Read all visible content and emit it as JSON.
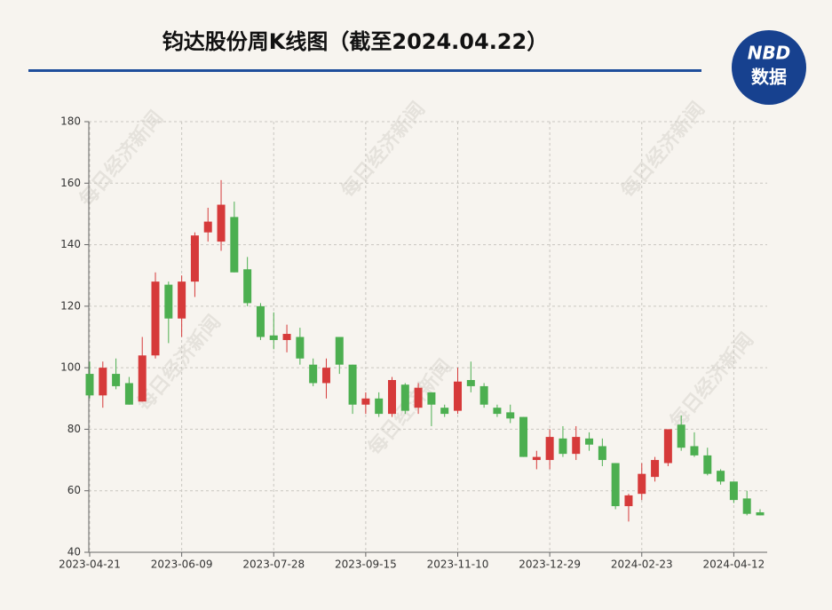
{
  "chart_data": {
    "type": "candlestick",
    "title": "钧达股份周K线图（截至2024.04.22）",
    "logo_top": "NBD",
    "logo_bottom": "数据",
    "watermark": "每日经济新闻",
    "categories": [
      "2023-04-21",
      null,
      null,
      null,
      null,
      null,
      null,
      "2023-06-09",
      null,
      null,
      null,
      null,
      null,
      null,
      "2023-07-28",
      null,
      null,
      null,
      null,
      null,
      null,
      "2023-09-15",
      null,
      null,
      null,
      null,
      null,
      null,
      "2023-11-10",
      null,
      null,
      null,
      null,
      null,
      null,
      "2023-12-29",
      null,
      null,
      null,
      null,
      null,
      null,
      "2024-02-23",
      null,
      null,
      null,
      null,
      null,
      null,
      "2024-04-12",
      null,
      null
    ],
    "open": [
      98,
      91,
      98,
      95,
      89,
      104,
      127,
      116,
      128,
      144,
      141,
      149,
      132,
      120,
      110.5,
      109,
      110,
      101,
      95,
      110,
      101,
      88,
      90,
      85,
      94.5,
      87,
      92,
      87,
      86,
      96,
      94,
      87,
      85.5,
      84,
      70,
      70,
      77,
      72,
      77,
      74.5,
      69,
      55,
      59,
      64.5,
      69,
      81.5,
      74.5,
      71.5,
      66.5,
      63,
      57.5,
      53
    ],
    "high": [
      102,
      102,
      103,
      97,
      110,
      131,
      128,
      130,
      144,
      152,
      161,
      154,
      136,
      121,
      118,
      114,
      113,
      103,
      103,
      110,
      101,
      92,
      92,
      97,
      95,
      95,
      92,
      88,
      100,
      102,
      95,
      88,
      88,
      84,
      73,
      80,
      81,
      81,
      79,
      77,
      69,
      59,
      69,
      71,
      80,
      84.5,
      79,
      74,
      67,
      63,
      60,
      54
    ],
    "low": [
      90,
      87,
      93,
      88,
      89,
      103,
      108,
      110,
      123,
      141,
      138,
      131,
      120,
      109,
      106,
      105,
      101,
      94,
      90,
      98,
      85,
      85,
      84,
      84,
      85,
      85,
      81,
      84,
      85,
      92,
      87,
      84,
      82,
      71,
      67,
      67,
      71,
      70,
      73,
      68,
      54,
      50,
      57,
      63,
      68,
      73,
      71,
      65,
      62,
      56,
      52,
      52
    ],
    "close": [
      91,
      100,
      94,
      88,
      104,
      128,
      116,
      128,
      143,
      147.5,
      153,
      131,
      121,
      110,
      109,
      111,
      103,
      95,
      100,
      101,
      88,
      90,
      85,
      96,
      86,
      93.5,
      88,
      85,
      95.5,
      94,
      88,
      85,
      83.5,
      71,
      71,
      77.5,
      72,
      77.5,
      75,
      70,
      55,
      58.5,
      65.5,
      70,
      80,
      74,
      71.5,
      65.5,
      63,
      57,
      52.5,
      52
    ],
    "up_color": "#d63a3a",
    "down_color": "#4caf50",
    "ylim": [
      40,
      180
    ],
    "yticks": [
      40,
      60,
      80,
      100,
      120,
      140,
      160,
      180
    ],
    "grid": true
  }
}
